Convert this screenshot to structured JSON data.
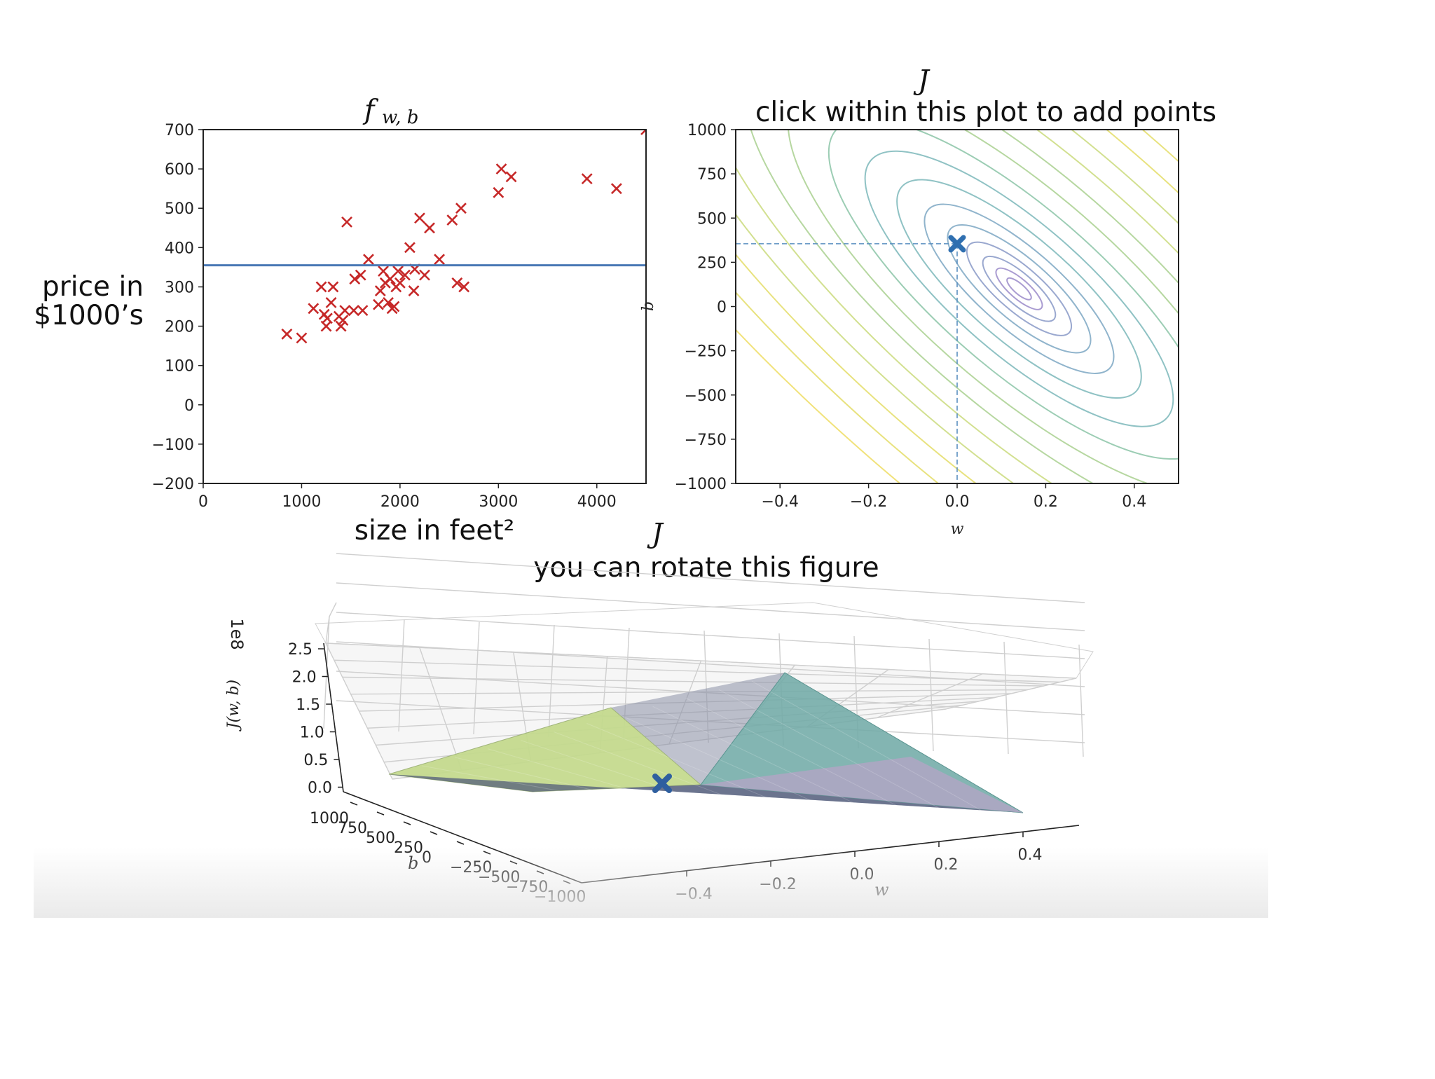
{
  "chart_data": [
    {
      "type": "scatter",
      "title": "f",
      "title_subscript": "w, b",
      "xlabel": "size in feet²",
      "ylabel_line1": "price in",
      "ylabel_line2": "$1000’s",
      "xlim": [
        0,
        4500
      ],
      "ylim": [
        -200,
        700
      ],
      "xticks": [
        "0",
        "1000",
        "2000",
        "3000",
        "4000"
      ],
      "yticks": [
        "700",
        "600",
        "500",
        "400",
        "300",
        "200",
        "100",
        "0",
        "−100",
        "−200"
      ],
      "series": [
        {
          "marker": "x",
          "color": "#c62828",
          "points": [
            [
              850,
              180
            ],
            [
              1000,
              170
            ],
            [
              1120,
              245
            ],
            [
              1200,
              300
            ],
            [
              1230,
              230
            ],
            [
              1250,
              200
            ],
            [
              1260,
              220
            ],
            [
              1300,
              260
            ],
            [
              1320,
              300
            ],
            [
              1380,
              225
            ],
            [
              1400,
              200
            ],
            [
              1420,
              215
            ],
            [
              1440,
              240
            ],
            [
              1460,
              465
            ],
            [
              1530,
              240
            ],
            [
              1540,
              320
            ],
            [
              1600,
              330
            ],
            [
              1620,
              240
            ],
            [
              1680,
              370
            ],
            [
              1780,
              255
            ],
            [
              1800,
              290
            ],
            [
              1830,
              340
            ],
            [
              1850,
              310
            ],
            [
              1880,
              260
            ],
            [
              1900,
              320
            ],
            [
              1920,
              245
            ],
            [
              1940,
              250
            ],
            [
              1960,
              300
            ],
            [
              1980,
              340
            ],
            [
              2000,
              310
            ],
            [
              2050,
              330
            ],
            [
              2100,
              400
            ],
            [
              2140,
              290
            ],
            [
              2150,
              345
            ],
            [
              2200,
              475
            ],
            [
              2250,
              330
            ],
            [
              2300,
              450
            ],
            [
              2400,
              370
            ],
            [
              2530,
              470
            ],
            [
              2580,
              310
            ],
            [
              2620,
              500
            ],
            [
              2650,
              300
            ],
            [
              3000,
              540
            ],
            [
              3030,
              600
            ],
            [
              3130,
              580
            ],
            [
              3900,
              575
            ],
            [
              4200,
              550
            ],
            [
              4500,
              700
            ]
          ]
        }
      ],
      "fit_line": {
        "color": "#4a78b5",
        "w": 0,
        "b": 355
      }
    },
    {
      "type": "contour",
      "title_top": "J",
      "title": "click within this plot to add points",
      "xlabel": "w",
      "ylabel": "b",
      "xlim": [
        -0.5,
        0.5
      ],
      "ylim": [
        -1000,
        1000
      ],
      "xticks": [
        "−0.4",
        "−0.2",
        "0.0",
        "0.2",
        "0.4"
      ],
      "yticks": [
        "1000",
        "750",
        "500",
        "250",
        "0",
        "−250",
        "−500",
        "−750",
        "−1000"
      ],
      "marker": {
        "w": 0.0,
        "b": 355,
        "color": "#2f6fb0"
      },
      "minimum": {
        "w": 0.14,
        "b": 100
      }
    },
    {
      "type": "surface",
      "title_top": "J",
      "title": "you can rotate this figure",
      "xlabel": "w",
      "ylabel": "b",
      "zlabel": "J(w, b)",
      "zscale_label": "1e8",
      "zticks": [
        "2.5",
        "2.0",
        "1.5",
        "1.0",
        "0.5",
        "0.0"
      ],
      "wticks": [
        "−0.4",
        "−0.2",
        "0.0",
        "0.2",
        "0.4"
      ],
      "bticks": [
        "1000",
        "750",
        "500",
        "250",
        "0",
        "−250",
        "−500",
        "−750",
        "−1000"
      ],
      "marker": {
        "w": 0.0,
        "b": 355,
        "color": "#2f5f9f"
      }
    }
  ]
}
